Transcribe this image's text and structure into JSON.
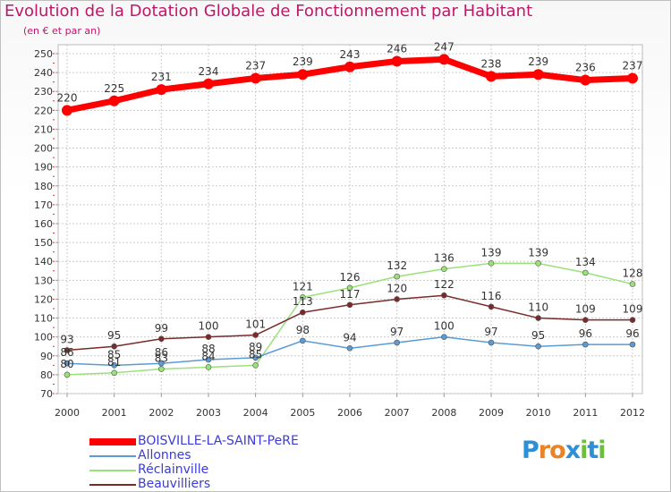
{
  "title": "Evolution de la Dotation Globale de Fonctionnement par Habitant",
  "subtitle": "(en € et par an)",
  "logo_text": "Proxiti",
  "chart_data": {
    "type": "line",
    "title": "Evolution de la Dotation Globale de Fonctionnement par Habitant",
    "ylabel": "(en € et par an)",
    "xlabel": "",
    "categories": [
      "2000",
      "2001",
      "2002",
      "2003",
      "2004",
      "2005",
      "2006",
      "2007",
      "2008",
      "2009",
      "2010",
      "2011",
      "2012"
    ],
    "ylim": [
      70,
      250
    ],
    "yticks": [
      70,
      80,
      90,
      100,
      110,
      120,
      130,
      140,
      150,
      160,
      170,
      180,
      190,
      200,
      210,
      220,
      230,
      240,
      250
    ],
    "grid": true,
    "series": [
      {
        "name": "BOISVILLE-LA-SAINT-PeRE",
        "color": "#ff0000",
        "values": [
          220,
          225,
          231,
          234,
          237,
          239,
          243,
          246,
          247,
          238,
          239,
          236,
          237
        ]
      },
      {
        "name": "Allonnes",
        "color": "#5b9bd5",
        "values": [
          86,
          85,
          86,
          88,
          89,
          98,
          94,
          97,
          100,
          97,
          95,
          96,
          96
        ]
      },
      {
        "name": "Réclainville",
        "color": "#99e27a",
        "values": [
          80,
          81,
          83,
          84,
          85,
          121,
          126,
          132,
          136,
          139,
          139,
          134,
          128
        ]
      },
      {
        "name": "Beauvilliers",
        "color": "#7b2a2a",
        "values": [
          93,
          95,
          99,
          100,
          101,
          113,
          117,
          120,
          122,
          116,
          110,
          109,
          109
        ]
      }
    ]
  }
}
